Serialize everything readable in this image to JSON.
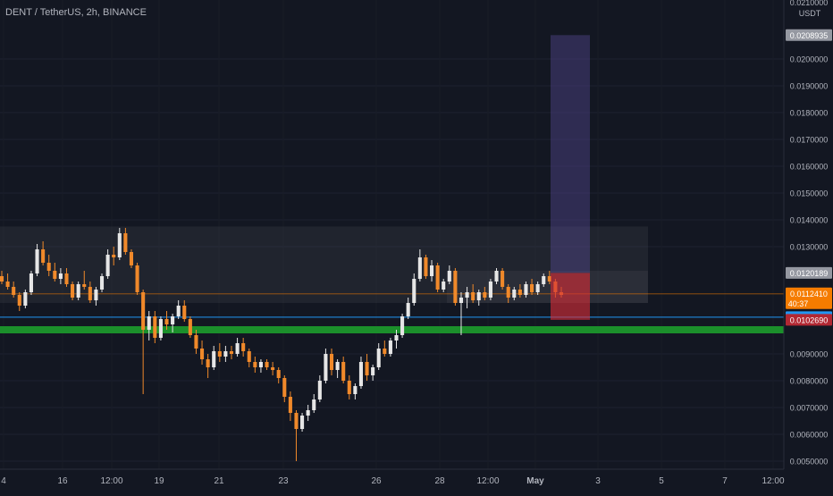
{
  "header": {
    "title": "DENT / TetherUS, 2h, BINANCE"
  },
  "chart_data": {
    "type": "candlestick",
    "symbol": "DENT / TetherUS",
    "interval": "2h",
    "exchange": "BINANCE",
    "currency": "USDT",
    "y_range": [
      0.0048,
      0.0222
    ],
    "y_ticks": [
      {
        "value": 0.005,
        "label": "0.0050000"
      },
      {
        "value": 0.006,
        "label": "0.0060000"
      },
      {
        "value": 0.007,
        "label": "0.0070000"
      },
      {
        "value": 0.008,
        "label": "0.0080000"
      },
      {
        "value": 0.009,
        "label": "0.0090000"
      },
      {
        "value": 0.013,
        "label": "0.0130000"
      },
      {
        "value": 0.014,
        "label": "0.0140000"
      },
      {
        "value": 0.015,
        "label": "0.0150000"
      },
      {
        "value": 0.016,
        "label": "0.0160000"
      },
      {
        "value": 0.017,
        "label": "0.0170000"
      },
      {
        "value": 0.018,
        "label": "0.0180000"
      },
      {
        "value": 0.019,
        "label": "0.0190000"
      },
      {
        "value": 0.02,
        "label": "0.0200000"
      }
    ],
    "y_top_partial_label": "0.0210000",
    "x_ticks": [
      "4",
      "16",
      "12:00",
      "19",
      "21",
      "23",
      "26",
      "28",
      "12:00",
      "May",
      "3",
      "5",
      "7",
      "12:00"
    ],
    "price_labels": [
      {
        "value": 0.02089,
        "label": "0.0208935",
        "color": "#9598a1"
      },
      {
        "value": 0.01202,
        "label": "0.0120189",
        "color": "#9598a1"
      },
      {
        "value": 0.01124,
        "label": "0.0112410",
        "sublabel": "40:37",
        "color": "#f57c00"
      },
      {
        "value": 0.01037,
        "label": "0.0103684",
        "color": "#2196f3"
      },
      {
        "value": 0.01027,
        "label": "0.0102690",
        "color": "#b22833"
      }
    ],
    "lines": [
      {
        "name": "support",
        "value": 0.0099,
        "color": "#1b8f2b"
      },
      {
        "name": "blue",
        "value": 0.01037,
        "color": "#2196f3"
      },
      {
        "name": "current",
        "value": 0.01124,
        "color": "#f57c00"
      }
    ],
    "zones": [
      {
        "name": "range-zone",
        "top": 0.01375,
        "bottom": 0.0109
      },
      {
        "name": "consolidation-zone",
        "top": 0.0121,
        "bottom": 0.0109
      }
    ],
    "position": {
      "entry": 0.01202,
      "target": 0.02089,
      "stop": 0.01027
    },
    "candles": [
      [
        0.0119,
        0.0121,
        0.0116,
        0.0117
      ],
      [
        0.0117,
        0.012,
        0.0114,
        0.0115
      ],
      [
        0.0115,
        0.0117,
        0.0111,
        0.0112
      ],
      [
        0.0112,
        0.0113,
        0.0106,
        0.0108
      ],
      [
        0.0108,
        0.0114,
        0.0107,
        0.0113
      ],
      [
        0.0113,
        0.0121,
        0.0112,
        0.012
      ],
      [
        0.012,
        0.0131,
        0.0119,
        0.0129
      ],
      [
        0.0129,
        0.0132,
        0.0123,
        0.0124
      ],
      [
        0.0124,
        0.0127,
        0.0119,
        0.0121
      ],
      [
        0.0121,
        0.0124,
        0.0117,
        0.0118
      ],
      [
        0.0118,
        0.0122,
        0.0116,
        0.012
      ],
      [
        0.012,
        0.0122,
        0.0115,
        0.0116
      ],
      [
        0.0116,
        0.0117,
        0.011,
        0.0111
      ],
      [
        0.0111,
        0.0117,
        0.011,
        0.0116
      ],
      [
        0.0116,
        0.0121,
        0.0114,
        0.0115
      ],
      [
        0.0115,
        0.0117,
        0.0109,
        0.011
      ],
      [
        0.011,
        0.0115,
        0.0108,
        0.0114
      ],
      [
        0.0114,
        0.012,
        0.0113,
        0.0119
      ],
      [
        0.0119,
        0.0129,
        0.0118,
        0.0127
      ],
      [
        0.0127,
        0.013,
        0.0123,
        0.0126
      ],
      [
        0.0126,
        0.0137,
        0.0125,
        0.0135
      ],
      [
        0.0135,
        0.0137,
        0.0127,
        0.0128
      ],
      [
        0.0128,
        0.0129,
        0.0122,
        0.0123
      ],
      [
        0.0123,
        0.0124,
        0.0112,
        0.0113
      ],
      [
        0.0113,
        0.0114,
        0.0075,
        0.0099
      ],
      [
        0.0099,
        0.0106,
        0.0095,
        0.0104
      ],
      [
        0.0104,
        0.0106,
        0.0094,
        0.0096
      ],
      [
        0.0096,
        0.0104,
        0.0095,
        0.0103
      ],
      [
        0.0103,
        0.0106,
        0.0099,
        0.0101
      ],
      [
        0.0101,
        0.0105,
        0.0098,
        0.0104
      ],
      [
        0.0104,
        0.011,
        0.0103,
        0.0108
      ],
      [
        0.0108,
        0.011,
        0.0102,
        0.0103
      ],
      [
        0.0103,
        0.0104,
        0.0096,
        0.0097
      ],
      [
        0.0097,
        0.0099,
        0.009,
        0.0092
      ],
      [
        0.0092,
        0.0095,
        0.0086,
        0.0088
      ],
      [
        0.0088,
        0.009,
        0.0081,
        0.0085
      ],
      [
        0.0085,
        0.0093,
        0.0084,
        0.0091
      ],
      [
        0.0091,
        0.0094,
        0.0087,
        0.0089
      ],
      [
        0.0089,
        0.0093,
        0.0087,
        0.0091
      ],
      [
        0.0091,
        0.0093,
        0.0088,
        0.009
      ],
      [
        0.009,
        0.0096,
        0.0089,
        0.0094
      ],
      [
        0.0094,
        0.0096,
        0.0089,
        0.0091
      ],
      [
        0.0091,
        0.0092,
        0.0085,
        0.0087
      ],
      [
        0.0087,
        0.0089,
        0.0083,
        0.0085
      ],
      [
        0.0085,
        0.0088,
        0.0083,
        0.0087
      ],
      [
        0.0087,
        0.0088,
        0.0084,
        0.0085
      ],
      [
        0.0085,
        0.0087,
        0.0082,
        0.0084
      ],
      [
        0.0084,
        0.0085,
        0.0079,
        0.0081
      ],
      [
        0.0081,
        0.0082,
        0.0072,
        0.0074
      ],
      [
        0.0074,
        0.0076,
        0.0065,
        0.0068
      ],
      [
        0.0068,
        0.0069,
        0.005,
        0.0062
      ],
      [
        0.0062,
        0.0068,
        0.0061,
        0.0067
      ],
      [
        0.0067,
        0.0071,
        0.0065,
        0.0069
      ],
      [
        0.0069,
        0.0075,
        0.0068,
        0.0073
      ],
      [
        0.0073,
        0.0082,
        0.0072,
        0.008
      ],
      [
        0.008,
        0.0092,
        0.0079,
        0.009
      ],
      [
        0.009,
        0.0092,
        0.0082,
        0.0084
      ],
      [
        0.0084,
        0.0088,
        0.0081,
        0.0087
      ],
      [
        0.0087,
        0.0089,
        0.0079,
        0.008
      ],
      [
        0.008,
        0.0082,
        0.0073,
        0.0075
      ],
      [
        0.0075,
        0.0079,
        0.0073,
        0.0078
      ],
      [
        0.0078,
        0.0089,
        0.0077,
        0.0087
      ],
      [
        0.0087,
        0.009,
        0.008,
        0.0082
      ],
      [
        0.0082,
        0.0086,
        0.008,
        0.0085
      ],
      [
        0.0085,
        0.0094,
        0.0084,
        0.0092
      ],
      [
        0.0092,
        0.0095,
        0.0089,
        0.009
      ],
      [
        0.009,
        0.0096,
        0.0089,
        0.0095
      ],
      [
        0.0095,
        0.0099,
        0.0092,
        0.0097
      ],
      [
        0.0097,
        0.0105,
        0.0096,
        0.0104
      ],
      [
        0.0104,
        0.0111,
        0.0103,
        0.0109
      ],
      [
        0.0109,
        0.012,
        0.0108,
        0.0118
      ],
      [
        0.0118,
        0.0129,
        0.0117,
        0.0126
      ],
      [
        0.0126,
        0.0127,
        0.0118,
        0.0119
      ],
      [
        0.0119,
        0.0125,
        0.0117,
        0.0123
      ],
      [
        0.0123,
        0.0124,
        0.0113,
        0.0114
      ],
      [
        0.0114,
        0.0118,
        0.0113,
        0.0117
      ],
      [
        0.0117,
        0.0123,
        0.0116,
        0.0121
      ],
      [
        0.0121,
        0.0122,
        0.0108,
        0.0109
      ],
      [
        0.0109,
        0.0113,
        0.0097,
        0.0111
      ],
      [
        0.0111,
        0.0115,
        0.0107,
        0.0113
      ],
      [
        0.0113,
        0.0116,
        0.0109,
        0.011
      ],
      [
        0.011,
        0.0114,
        0.0108,
        0.0113
      ],
      [
        0.0113,
        0.0115,
        0.011,
        0.0111
      ],
      [
        0.0111,
        0.0118,
        0.011,
        0.0117
      ],
      [
        0.0117,
        0.0122,
        0.0116,
        0.0121
      ],
      [
        0.0121,
        0.0122,
        0.0114,
        0.0115
      ],
      [
        0.0115,
        0.0116,
        0.0109,
        0.0111
      ],
      [
        0.0111,
        0.0115,
        0.011,
        0.0114
      ],
      [
        0.0114,
        0.0116,
        0.0111,
        0.0112
      ],
      [
        0.0112,
        0.0117,
        0.0111,
        0.0116
      ],
      [
        0.0116,
        0.0118,
        0.0112,
        0.0113
      ],
      [
        0.0113,
        0.0117,
        0.0112,
        0.0116
      ],
      [
        0.0116,
        0.012,
        0.0115,
        0.0119
      ],
      [
        0.0119,
        0.0121,
        0.0116,
        0.0117
      ],
      [
        0.0117,
        0.0118,
        0.0111,
        0.0113
      ],
      [
        0.0113,
        0.0115,
        0.0111,
        0.0112
      ]
    ]
  }
}
